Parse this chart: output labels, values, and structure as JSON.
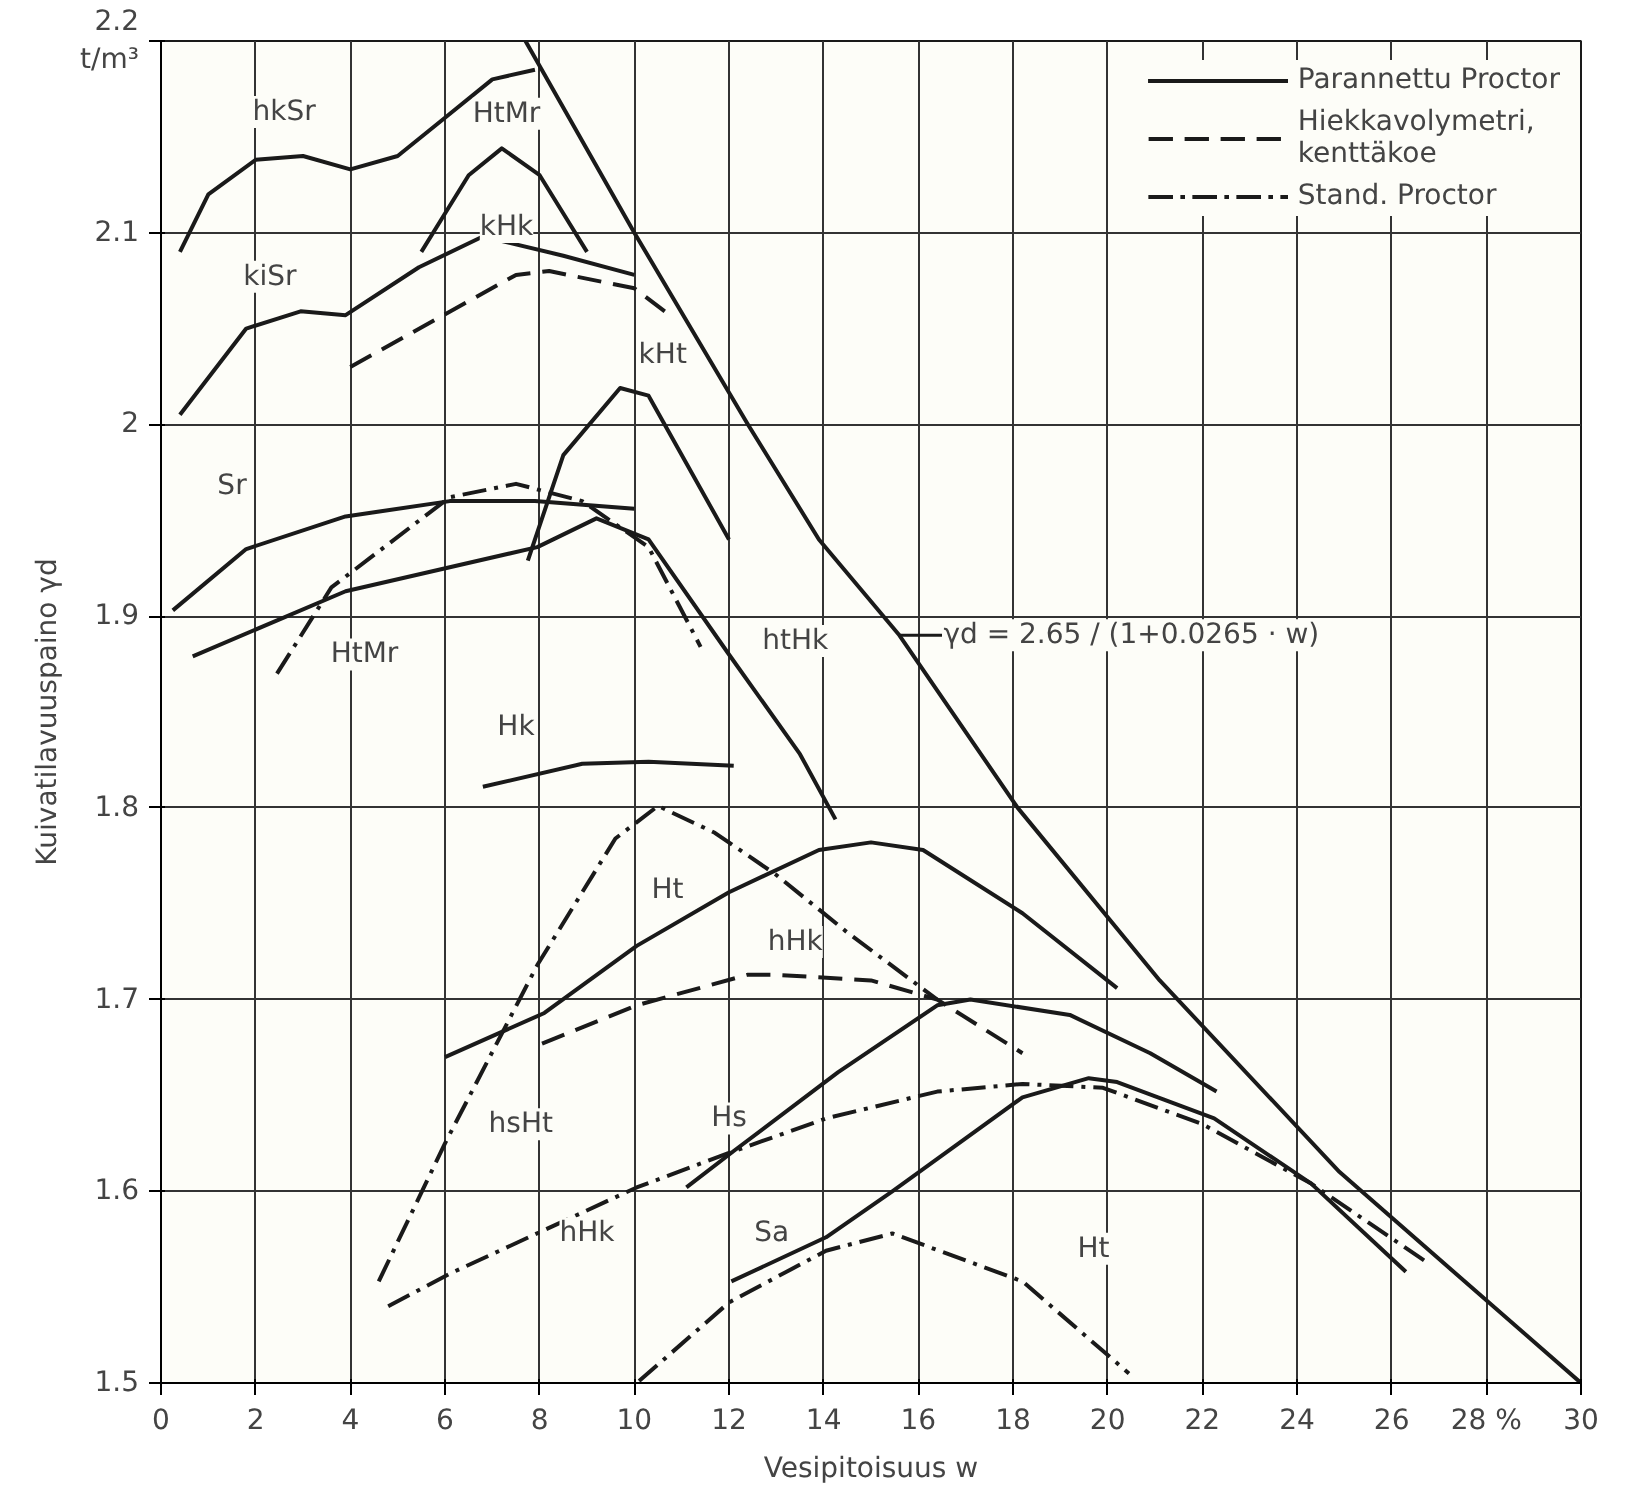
{
  "chart_data": {
    "type": "line",
    "xlabel": "Vesipitoisuus w",
    "ylabel": "Kuivatilavuuspaino γd",
    "xlim": [
      0,
      30
    ],
    "ylim": [
      1.5,
      2.2
    ],
    "xticks": [
      0,
      2,
      4,
      6,
      8,
      10,
      12,
      14,
      16,
      18,
      20,
      22,
      24,
      26,
      {
        "value": 28,
        "label": "28 %"
      },
      30
    ],
    "yticks": [
      1.5,
      1.6,
      1.7,
      1.8,
      1.9,
      2.0,
      2.1,
      {
        "value": 2.2,
        "label": "2.2\nt/m³"
      }
    ],
    "grid": true,
    "legend": "top right",
    "marker": "none",
    "series": [
      {
        "name": "Parannettu Proctor",
        "color": "#1a1a1a",
        "line_style": "solid",
        "x": [
          0.4,
          1,
          2,
          3,
          4,
          5,
          6,
          7,
          7.9
        ],
        "values": [
          2.09,
          2.12,
          2.138,
          2.14,
          2.133,
          2.14,
          2.16,
          2.18,
          2.185
        ]
      },
      {
        "color": "#1a1a1a",
        "line_style": "solid",
        "x": [
          5.5,
          6,
          6.5,
          7.2,
          8,
          8.5,
          9
        ],
        "values": [
          2.09,
          2.11,
          2.13,
          2.144,
          2.13,
          2.11,
          2.09
        ]
      },
      {
        "color": "#1a1a1a",
        "line_style": "solid",
        "x": [
          0.4,
          1.8,
          2.95,
          3.9,
          5.45,
          6.8,
          8.5,
          10
        ],
        "values": [
          2.005,
          2.05,
          2.059,
          2.057,
          2.082,
          2.098,
          2.088,
          2.078
        ]
      },
      {
        "name": "Hiekkavolymetri,\nkenttäkoe",
        "color": "#1a1a1a",
        "line_style": "dashed",
        "x": [
          4.0,
          7.5,
          8.2,
          10,
          10.8
        ],
        "values": [
          2.03,
          2.078,
          2.08,
          2.071,
          2.056
        ]
      },
      {
        "color": "#1a1a1a",
        "line_style": "solid",
        "x": [
          7.75,
          8.5,
          9.7,
          10.3,
          12
        ],
        "values": [
          1.929,
          1.984,
          2.019,
          2.015,
          1.94
        ]
      },
      {
        "color": "#1a1a1a",
        "line_style": "solid",
        "x": [
          0.25,
          1.8,
          3.9,
          6.1,
          7.9,
          10
        ],
        "values": [
          1.903,
          1.935,
          1.952,
          1.96,
          1.96,
          1.956
        ]
      },
      {
        "color": "#1a1a1a",
        "line_style": "solid",
        "x": [
          0.67,
          3.9,
          7.95,
          9.2,
          10.3,
          12,
          13.5,
          14.25
        ],
        "values": [
          1.879,
          1.913,
          1.936,
          1.951,
          1.94,
          1.88,
          1.828,
          1.794
        ]
      },
      {
        "name": "Stand. Proctor",
        "color": "#1a1a1a",
        "line_style": "dashdot",
        "x": [
          2.45,
          3.6,
          6.1,
          7.5,
          8.9,
          10.3,
          11.4
        ],
        "values": [
          1.87,
          1.915,
          1.962,
          1.969,
          1.96,
          1.936,
          1.884
        ]
      },
      {
        "color": "#1a1a1a",
        "line_style": "solid",
        "x": [
          6.8,
          8.9,
          10.3,
          12.1
        ],
        "values": [
          1.811,
          1.823,
          1.824,
          1.822
        ]
      },
      {
        "color": "#1a1a1a",
        "line_style": "dashdot",
        "x": [
          4.6,
          6,
          7.95,
          9.6,
          10.5,
          11.7,
          13,
          14.5,
          16.4
        ],
        "values": [
          1.553,
          1.625,
          1.718,
          1.784,
          1.801,
          1.787,
          1.765,
          1.735,
          1.7
        ]
      },
      {
        "color": "#1a1a1a",
        "line_style": "solid",
        "x": [
          6,
          8.1,
          10.05,
          12,
          13.9,
          15,
          16.1,
          18.2,
          20.2
        ],
        "values": [
          1.67,
          1.693,
          1.728,
          1.756,
          1.778,
          1.782,
          1.778,
          1.745,
          1.706
        ]
      },
      {
        "color": "#1a1a1a",
        "line_style": "dashed",
        "x": [
          8.05,
          10.05,
          12.4,
          12.95,
          15,
          16.4,
          18.2
        ],
        "values": [
          1.677,
          1.697,
          1.713,
          1.713,
          1.71,
          1.7,
          1.672
        ]
      },
      {
        "color": "#1a1a1a",
        "line_style": "solid",
        "x": [
          11.1,
          12.1,
          14.3,
          16.4,
          17.1,
          19.2,
          20.9,
          22.3
        ],
        "values": [
          1.602,
          1.621,
          1.662,
          1.697,
          1.7,
          1.692,
          1.672,
          1.652
        ]
      },
      {
        "color": "#1a1a1a",
        "line_style": "dashdot",
        "x": [
          4.8,
          6.1,
          10.05,
          12,
          14.05,
          16.4,
          18.2,
          19.9,
          22,
          24.3,
          26.8
        ],
        "values": [
          1.54,
          1.557,
          1.602,
          1.62,
          1.638,
          1.652,
          1.656,
          1.654,
          1.635,
          1.604,
          1.562
        ]
      },
      {
        "color": "#1a1a1a",
        "line_style": "solid",
        "x": [
          12.05,
          14.05,
          15.45,
          18.2,
          19.6,
          20.2,
          22.25,
          24.3,
          26.3
        ],
        "values": [
          1.553,
          1.576,
          1.6,
          1.649,
          1.659,
          1.657,
          1.638,
          1.604,
          1.558
        ]
      },
      {
        "color": "#1a1a1a",
        "line_style": "dashdot",
        "x": [
          10.1,
          12,
          14.05,
          15.45,
          18.2,
          20.45
        ],
        "values": [
          1.501,
          1.542,
          1.569,
          1.578,
          1.553,
          1.505
        ]
      },
      {
        "color": "#1a1a1a",
        "line_style": "solid",
        "x": [
          7.7,
          10,
          12.4,
          13.9,
          15.6,
          18.1,
          21.1,
          24.9,
          30
        ],
        "values": [
          2.2,
          2.1,
          2.0,
          1.94,
          1.89,
          1.8,
          1.71,
          1.61,
          1.5
        ]
      }
    ],
    "annotations": [
      "hkSr",
      "HtMr",
      "kiSr",
      "kHk",
      "kHt",
      "Sr",
      "HtMr",
      "htHk",
      "Hk",
      "Ht",
      "hHk",
      "hsHt",
      "Hs",
      "hHk",
      "Sa",
      "Ht",
      "γd = 2.65 / (1+0.0265 · w)"
    ]
  }
}
